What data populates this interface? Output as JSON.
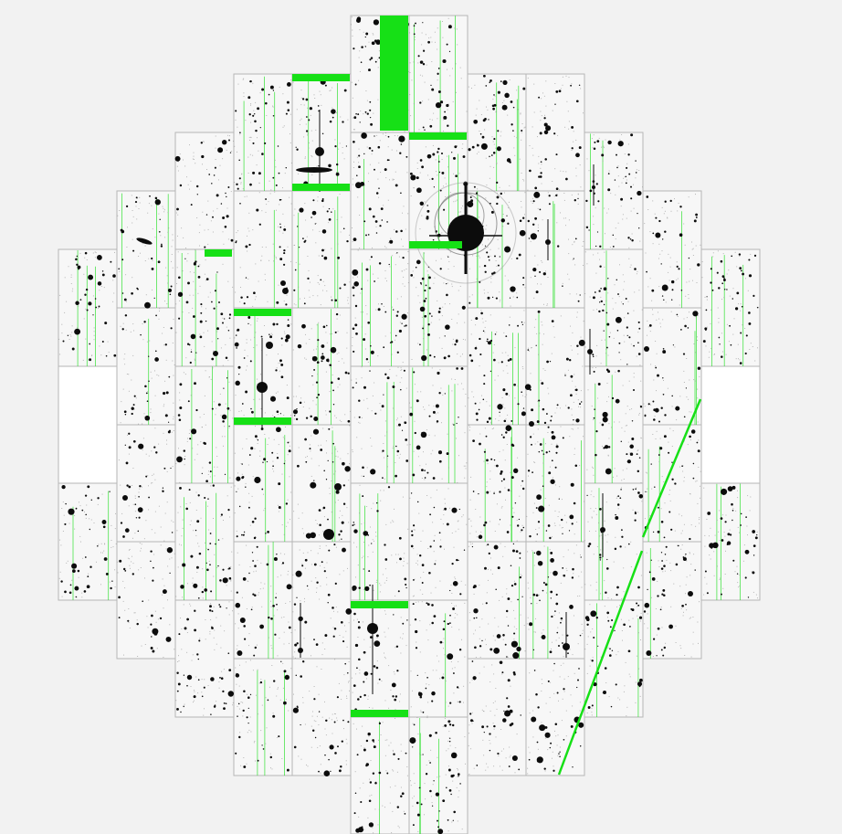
{
  "colors": {
    "background": "#f2f2f2",
    "ccd_fill": "#f7f7f7",
    "ccd_border": "#b5b5b5",
    "star": "#0c0c0c",
    "bad_column": "#22e022",
    "mask": "#16e016",
    "empty_chip": "#ffffff"
  },
  "image": {
    "content": "astronomical-focal-plane-mosaic",
    "style": "inverted-grayscale"
  }
}
